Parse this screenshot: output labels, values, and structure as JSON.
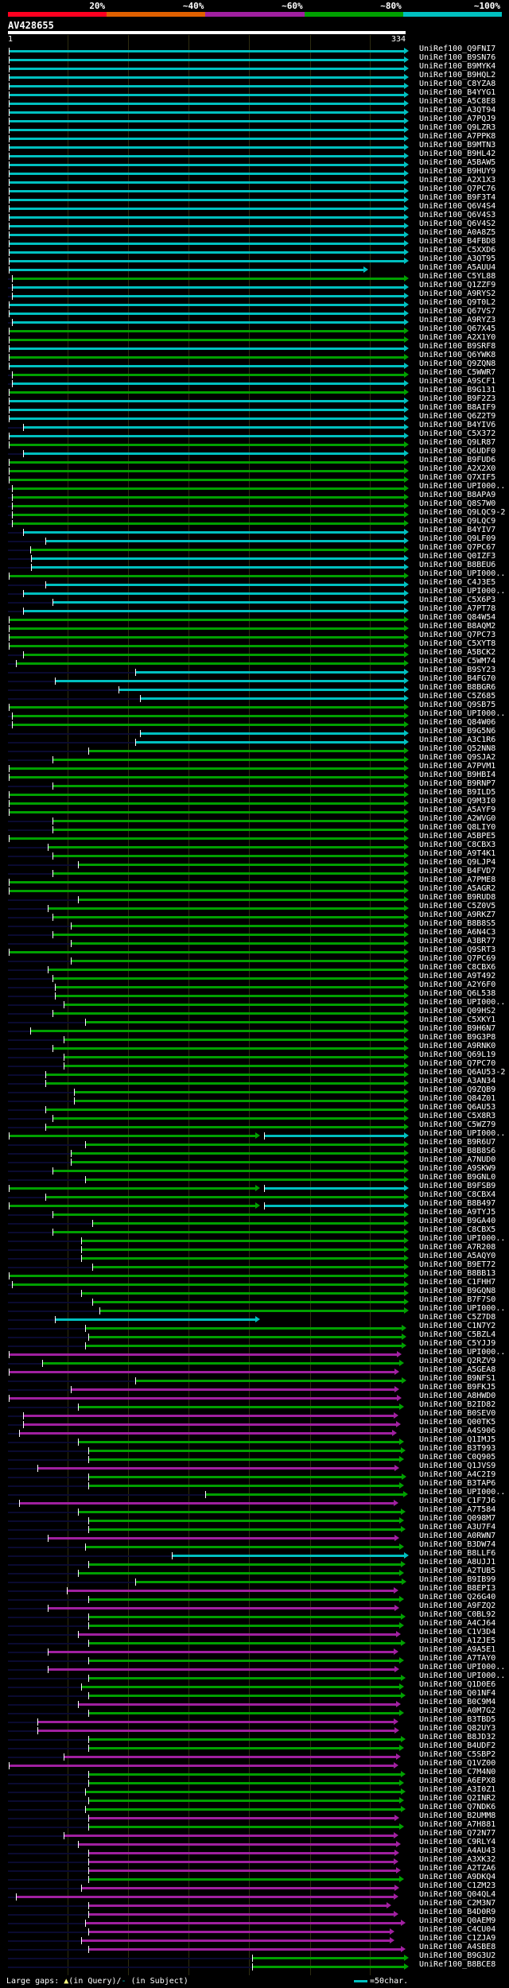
{
  "header": {
    "scale": [
      {
        "label": "20%",
        "color": "#ff0020"
      },
      {
        "label": "~40%",
        "color": "#e06000"
      },
      {
        "label": "~60%",
        "color": "#a020a0"
      },
      {
        "label": "~80%",
        "color": "#00a000"
      },
      {
        "label": "~100%",
        "color": "#00c0c0"
      }
    ],
    "query_name": "AV428655",
    "query_start": "1",
    "query_end": "334",
    "query_length": 334
  },
  "colors": {
    "c": "#00c0c0",
    "g": "#00a000",
    "m": "#a020a0",
    "ext": "#0a0a30"
  },
  "footer": {
    "gaps_prefix": "Large gaps: ",
    "gaps_query_symbol": "▲",
    "gaps_query": "(in Query)/",
    "gaps_subject_symbol": "-",
    "gaps_subject": " (in Subject)",
    "legend": "=50char."
  },
  "rows": [
    [
      "UniRef100_Q9FNI7",
      "c",
      1,
      334
    ],
    [
      "UniRef100_B9SN76",
      "c",
      1,
      334
    ],
    [
      "UniRef100_B9MYK4",
      "c",
      1,
      334
    ],
    [
      "UniRef100_B9HQL2",
      "c",
      1,
      334
    ],
    [
      "UniRef100_C8YZA8",
      "c",
      1,
      334
    ],
    [
      "UniRef100_B4YYG1",
      "c",
      1,
      334
    ],
    [
      "UniRef100_A5C8E8",
      "c",
      1,
      334
    ],
    [
      "UniRef100_A3QT94",
      "c",
      1,
      334
    ],
    [
      "UniRef100_A7PQJ9",
      "c",
      1,
      334
    ],
    [
      "UniRef100_Q9LZR3",
      "c",
      1,
      334
    ],
    [
      "UniRef100_A7PPK8",
      "c",
      1,
      334
    ],
    [
      "UniRef100_B9MTN3",
      "c",
      1,
      334
    ],
    [
      "UniRef100_B9HL42",
      "c",
      1,
      334
    ],
    [
      "UniRef100_A5BAW5",
      "c",
      1,
      334
    ],
    [
      "UniRef100_B9HUY9",
      "c",
      1,
      334
    ],
    [
      "UniRef100_A2X1X3",
      "c",
      1,
      334
    ],
    [
      "UniRef100_Q7PC76",
      "c",
      1,
      334
    ],
    [
      "UniRef100_B9F3T4",
      "c",
      1,
      334
    ],
    [
      "UniRef100_Q6V4S4",
      "c",
      1,
      334
    ],
    [
      "UniRef100_Q6V4S3",
      "c",
      1,
      334
    ],
    [
      "UniRef100_Q6V4S2",
      "c",
      1,
      334
    ],
    [
      "UniRef100_A0A8Z5",
      "c",
      1,
      334
    ],
    [
      "UniRef100_B4FBD8",
      "c",
      1,
      334
    ],
    [
      "UniRef100_C5XXD6",
      "c",
      1,
      334
    ],
    [
      "UniRef100_A3QT95",
      "c",
      1,
      334
    ],
    [
      "UniRef100_A5AUU4",
      "c",
      1,
      300
    ],
    [
      "UniRef100_C5YL88",
      "g",
      4,
      334
    ],
    [
      "UniRef100_Q1ZZF9",
      "c",
      4,
      334
    ],
    [
      "UniRef100_A9RYS2",
      "c",
      4,
      334
    ],
    [
      "UniRef100_Q9T0L2",
      "c",
      1,
      334
    ],
    [
      "UniRef100_Q67VS7",
      "c",
      1,
      334
    ],
    [
      "UniRef100_A9RYZ3",
      "c",
      4,
      334
    ],
    [
      "UniRef100_Q67X45",
      "g",
      1,
      334
    ],
    [
      "UniRef100_A2X1Y0",
      "g",
      1,
      334
    ],
    [
      "UniRef100_B9SRF8",
      "c",
      1,
      334
    ],
    [
      "UniRef100_Q6YWK8",
      "g",
      1,
      334
    ],
    [
      "UniRef100_Q9ZQN8",
      "c",
      1,
      334
    ],
    [
      "UniRef100_C5WWR7",
      "g",
      4,
      334
    ],
    [
      "UniRef100_A9SCF1",
      "c",
      4,
      334
    ],
    [
      "UniRef100_B9G131",
      "g",
      1,
      334
    ],
    [
      "UniRef100_B9F2Z3",
      "c",
      1,
      334
    ],
    [
      "UniRef100_B8AIF9",
      "c",
      1,
      334
    ],
    [
      "UniRef100_Q6Z2T9",
      "c",
      1,
      334
    ],
    [
      "UniRef100_B4YIV6",
      "c",
      13,
      334
    ],
    [
      "UniRef100_C5X372",
      "c",
      1,
      334
    ],
    [
      "UniRef100_Q9LR87",
      "g",
      1,
      334
    ],
    [
      "UniRef100_Q6UDF0",
      "c",
      13,
      334
    ],
    [
      "UniRef100_B9FUD6",
      "g",
      1,
      334
    ],
    [
      "UniRef100_A2X2X0",
      "g",
      1,
      334
    ],
    [
      "UniRef100_Q7XIF5",
      "g",
      1,
      334
    ],
    [
      "UniRef100_UPI000..",
      "g",
      4,
      334
    ],
    [
      "UniRef100_B8APA9",
      "g",
      4,
      334
    ],
    [
      "UniRef100_Q8S7W0",
      "g",
      4,
      334
    ],
    [
      "UniRef100_Q9LQC9-2",
      "g",
      4,
      334
    ],
    [
      "UniRef100_Q9LQC9",
      "g",
      4,
      334
    ],
    [
      "UniRef100_B4YIV7",
      "c",
      13,
      334
    ],
    [
      "UniRef100_Q9LF09",
      "c",
      32,
      334
    ],
    [
      "UniRef100_Q7PC67",
      "g",
      19,
      334
    ],
    [
      "UniRef100_Q0IZF3",
      "c",
      20,
      334
    ],
    [
      "UniRef100_B8BEU6",
      "c",
      20,
      334
    ],
    [
      "UniRef100_UPI000..",
      "g",
      1,
      334
    ],
    [
      "UniRef100_C4J3E5",
      "c",
      32,
      334
    ],
    [
      "UniRef100_UPI000..",
      "c",
      13,
      334
    ],
    [
      "UniRef100_C5X6P3",
      "c",
      38,
      334
    ],
    [
      "UniRef100_A7PT78",
      "c",
      13,
      334
    ],
    [
      "UniRef100_Q84W54",
      "g",
      1,
      334
    ],
    [
      "UniRef100_B8AQM2",
      "g",
      1,
      334
    ],
    [
      "UniRef100_Q7PC73",
      "g",
      1,
      334
    ],
    [
      "UniRef100_C5XYT8",
      "g",
      1,
      334
    ],
    [
      "UniRef100_A5BCK2",
      "g",
      13,
      334
    ],
    [
      "UniRef100_C5WM74",
      "g",
      7,
      334
    ],
    [
      "UniRef100_B9SY23",
      "c",
      107,
      334
    ],
    [
      "UniRef100_B4FG70",
      "c",
      40,
      334
    ],
    [
      "UniRef100_B8BGR6",
      "c",
      93,
      334
    ],
    [
      "UniRef100_C5Z685",
      "c",
      111,
      334
    ],
    [
      "UniRef100_Q9SB75",
      "g",
      1,
      334
    ],
    [
      "UniRef100_UPI000..",
      "g",
      4,
      334
    ],
    [
      "UniRef100_Q84W06",
      "g",
      4,
      334
    ],
    [
      "UniRef100_B9G5N6",
      "c",
      111,
      334
    ],
    [
      "UniRef100_A3C1R6",
      "c",
      107,
      334
    ],
    [
      "UniRef100_Q52NN8",
      "g",
      68,
      334
    ],
    [
      "UniRef100_Q9SJA2",
      "g",
      38,
      334
    ],
    [
      "UniRef100_A7PVM1",
      "g",
      1,
      334
    ],
    [
      "UniRef100_B9HBI4",
      "g",
      1,
      334
    ],
    [
      "UniRef100_B9RNP7",
      "g",
      38,
      334
    ],
    [
      "UniRef100_B9ILD5",
      "g",
      1,
      334
    ],
    [
      "UniRef100_Q9M3I0",
      "g",
      1,
      334
    ],
    [
      "UniRef100_A5AYF9",
      "g",
      1,
      334
    ],
    [
      "UniRef100_A2WVG0",
      "g",
      38,
      334
    ],
    [
      "UniRef100_Q8LIY0",
      "g",
      38,
      334
    ],
    [
      "UniRef100_A5BPE5",
      "g",
      1,
      334
    ],
    [
      "UniRef100_C8CBX3",
      "g",
      34,
      334
    ],
    [
      "UniRef100_A9T4K1",
      "g",
      38,
      334
    ],
    [
      "UniRef100_Q9LJP4",
      "g",
      59,
      334
    ],
    [
      "UniRef100_B4FVD7",
      "g",
      38,
      334
    ],
    [
      "UniRef100_A7PME8",
      "g",
      1,
      334
    ],
    [
      "UniRef100_A5AGR2",
      "g",
      1,
      334
    ],
    [
      "UniRef100_B9RUD8",
      "g",
      59,
      334
    ],
    [
      "UniRef100_C5Z0V5",
      "g",
      34,
      334
    ],
    [
      "UniRef100_A9RKZ7",
      "g",
      38,
      334
    ],
    [
      "UniRef100_B8B8S5",
      "g",
      53,
      334
    ],
    [
      "UniRef100_A6N4C3",
      "g",
      38,
      334
    ],
    [
      "UniRef100_A3BR77",
      "g",
      53,
      334
    ],
    [
      "UniRef100_Q9SRT3",
      "g",
      1,
      334
    ],
    [
      "UniRef100_Q7PC69",
      "g",
      53,
      334
    ],
    [
      "UniRef100_C8CBX6",
      "g",
      34,
      334
    ],
    [
      "UniRef100_A9T492",
      "g",
      38,
      334
    ],
    [
      "UniRef100_A2Y6F0",
      "g",
      40,
      334
    ],
    [
      "UniRef100_Q6L538",
      "g",
      40,
      334
    ],
    [
      "UniRef100_UPI000..",
      "g",
      47,
      334
    ],
    [
      "UniRef100_Q09HS2",
      "g",
      38,
      334
    ],
    [
      "UniRef100_C5XKY1",
      "g",
      65,
      334
    ],
    [
      "UniRef100_B9H6N7",
      "g",
      19,
      334
    ],
    [
      "UniRef100_B9G3P8",
      "g",
      47,
      334
    ],
    [
      "UniRef100_A9RNK0",
      "g",
      38,
      334
    ],
    [
      "UniRef100_Q69L19",
      "g",
      47,
      334
    ],
    [
      "UniRef100_Q7PC70",
      "g",
      47,
      334
    ],
    [
      "UniRef100_Q6AU53-2",
      "g",
      32,
      334
    ],
    [
      "UniRef100_A3AN34",
      "g",
      32,
      334
    ],
    [
      "UniRef100_Q9ZQB9",
      "g",
      56,
      334
    ],
    [
      "UniRef100_Q84Z01",
      "g",
      56,
      334
    ],
    [
      "UniRef100_Q6AU53",
      "g",
      32,
      334
    ],
    [
      "UniRef100_C5X8R3",
      "g",
      38,
      334
    ],
    [
      "UniRef100_C5WZ79",
      "g",
      32,
      334
    ],
    [
      "UniRef100_UPI000..",
      "g",
      1,
      209,
      "c",
      215,
      334
    ],
    [
      "UniRef100_B9R6U7",
      "g",
      65,
      334
    ],
    [
      "UniRef100_B8B8S6",
      "g",
      53,
      334
    ],
    [
      "UniRef100_A7NUD0",
      "g",
      53,
      334
    ],
    [
      "UniRef100_A9SKW9",
      "g",
      38,
      334
    ],
    [
      "UniRef100_B9GNL0",
      "g",
      65,
      334
    ],
    [
      "UniRef100_B9FSB9",
      "g",
      1,
      209,
      "c",
      215,
      334
    ],
    [
      "UniRef100_C8CBX4",
      "g",
      32,
      334
    ],
    [
      "UniRef100_B8B497",
      "g",
      1,
      209,
      "c",
      215,
      334
    ],
    [
      "UniRef100_A9TYJ5",
      "g",
      38,
      334
    ],
    [
      "UniRef100_B9GA40",
      "g",
      71,
      334
    ],
    [
      "UniRef100_C8CBX5",
      "g",
      38,
      334
    ],
    [
      "UniRef100_UPI000..",
      "g",
      62,
      334
    ],
    [
      "UniRef100_A7R208",
      "g",
      62,
      334
    ],
    [
      "UniRef100_A5AQY0",
      "g",
      62,
      334
    ],
    [
      "UniRef100_B9ET72",
      "g",
      71,
      334
    ],
    [
      "UniRef100_B8BB13",
      "g",
      1,
      334
    ],
    [
      "UniRef100_C1FHH7",
      "g",
      4,
      334
    ],
    [
      "UniRef100_B9GQN8",
      "g",
      62,
      334
    ],
    [
      "UniRef100_B7F7S0",
      "g",
      71,
      334
    ],
    [
      "UniRef100_UPI000..",
      "g",
      77,
      334
    ],
    [
      "UniRef100_C5Z7D8",
      "c",
      40,
      209
    ],
    [
      "UniRef100_C1N7Y2",
      "g",
      65,
      332
    ],
    [
      "UniRef100_C5BZL4",
      "g",
      68,
      332
    ],
    [
      "UniRef100_C5YJJ9",
      "g",
      65,
      332
    ],
    [
      "UniRef100_UPI000..",
      "m",
      1,
      328
    ],
    [
      "UniRef100_Q2RZV9",
      "g",
      29,
      330
    ],
    [
      "UniRef100_A5GEA8",
      "m",
      1,
      326
    ],
    [
      "UniRef100_B9NFS1",
      "g",
      107,
      332
    ],
    [
      "UniRef100_B9FKJ5",
      "m",
      53,
      326
    ],
    [
      "UniRef100_A8HWD0",
      "m",
      1,
      328
    ],
    [
      "UniRef100_B2ID82",
      "g",
      59,
      330
    ],
    [
      "UniRef100_B0SEV0",
      "m",
      13,
      325
    ],
    [
      "UniRef100_Q00TK5",
      "m",
      13,
      327
    ],
    [
      "UniRef100_A4S906",
      "m",
      10,
      324
    ],
    [
      "UniRef100_Q1IMJ5",
      "g",
      59,
      330
    ],
    [
      "UniRef100_B3T993",
      "g",
      68,
      331
    ],
    [
      "UniRef100_C0Q905",
      "g",
      68,
      330
    ],
    [
      "UniRef100_Q1JVS9",
      "m",
      25,
      326
    ],
    [
      "UniRef100_A4C2I9",
      "g",
      68,
      332
    ],
    [
      "UniRef100_B3TAP6",
      "g",
      68,
      330
    ],
    [
      "UniRef100_UPI000..",
      "g",
      166,
      333
    ],
    [
      "UniRef100_C1F7J6",
      "m",
      10,
      325
    ],
    [
      "UniRef100_A7T584",
      "g",
      59,
      331
    ],
    [
      "UniRef100_Q098M7",
      "g",
      68,
      330
    ],
    [
      "UniRef100_A3U7F4",
      "g",
      68,
      331
    ],
    [
      "UniRef100_A0RWN7",
      "m",
      34,
      326
    ],
    [
      "UniRef100_B3DW74",
      "g",
      65,
      330
    ],
    [
      "UniRef100_B8LLF6",
      "c",
      138,
      334
    ],
    [
      "UniRef100_A8UJJ1",
      "g",
      68,
      331
    ],
    [
      "UniRef100_A2TUB5",
      "g",
      59,
      330
    ],
    [
      "UniRef100_B9IB99",
      "g",
      107,
      332
    ],
    [
      "UniRef100_B8EPI3",
      "m",
      50,
      325
    ],
    [
      "UniRef100_Q26G40",
      "g",
      68,
      330
    ],
    [
      "UniRef100_A9FZQ2",
      "m",
      34,
      326
    ],
    [
      "UniRef100_C0BL92",
      "g",
      68,
      331
    ],
    [
      "UniRef100_A4CJ64",
      "g",
      68,
      330
    ],
    [
      "UniRef100_C1V3D4",
      "m",
      59,
      327
    ],
    [
      "UniRef100_A1ZJE5",
      "g",
      68,
      331
    ],
    [
      "UniRef100_A9A5E1",
      "m",
      34,
      325
    ],
    [
      "UniRef100_A7TAY0",
      "g",
      68,
      330
    ],
    [
      "UniRef100_UPI000..",
      "m",
      34,
      326
    ],
    [
      "UniRef100_UPI000..",
      "g",
      68,
      331
    ],
    [
      "UniRef100_Q1D0E6",
      "g",
      62,
      330
    ],
    [
      "UniRef100_Q01NF4",
      "g",
      68,
      331
    ],
    [
      "UniRef100_B0C9M4",
      "m",
      59,
      327
    ],
    [
      "UniRef100_A0M7G2",
      "g",
      68,
      330
    ],
    [
      "UniRef100_B3TBD5",
      "m",
      25,
      325
    ],
    [
      "UniRef100_Q82UY3",
      "m",
      25,
      326
    ],
    [
      "UniRef100_B8JD32",
      "g",
      68,
      331
    ],
    [
      "UniRef100_B4UDF2",
      "g",
      68,
      330
    ],
    [
      "UniRef100_C5SBP2",
      "m",
      47,
      327
    ],
    [
      "UniRef100_Q1VZ00",
      "m",
      1,
      325
    ],
    [
      "UniRef100_C7M4N0",
      "g",
      68,
      331
    ],
    [
      "UniRef100_A6EPX8",
      "g",
      68,
      330
    ],
    [
      "UniRef100_A3I0Z1",
      "g",
      65,
      331
    ],
    [
      "UniRef100_Q2INR2",
      "g",
      68,
      330
    ],
    [
      "UniRef100_Q7NDK6",
      "g",
      65,
      331
    ],
    [
      "UniRef100_B2UMM8",
      "m",
      68,
      326
    ],
    [
      "UniRef100_A7H881",
      "g",
      68,
      330
    ],
    [
      "UniRef100_Q72N77",
      "m",
      47,
      325
    ],
    [
      "UniRef100_C9RLY4",
      "m",
      59,
      327
    ],
    [
      "UniRef100_A4AU43",
      "m",
      68,
      326
    ],
    [
      "UniRef100_A3XK32",
      "m",
      68,
      325
    ],
    [
      "UniRef100_A2TZA6",
      "m",
      68,
      327
    ],
    [
      "UniRef100_A9DKQ4",
      "g",
      68,
      330
    ],
    [
      "UniRef100_C1ZM23",
      "m",
      62,
      326
    ],
    [
      "UniRef100_Q04QL4",
      "m",
      7,
      325
    ],
    [
      "UniRef100_C2M3N7",
      "m",
      68,
      319
    ],
    [
      "UniRef100_B4D0R9",
      "m",
      68,
      325
    ],
    [
      "UniRef100_Q0AEM9",
      "m",
      65,
      331
    ],
    [
      "UniRef100_C4CU04",
      "m",
      68,
      322
    ],
    [
      "UniRef100_C1ZJA9",
      "m",
      62,
      322
    ],
    [
      "UniRef100_A4SBE8",
      "m",
      68,
      331
    ],
    [
      "UniRef100_B9G3U2",
      "g",
      205,
      334
    ],
    [
      "UniRef100_B8BCE8",
      "g",
      205,
      334
    ]
  ]
}
